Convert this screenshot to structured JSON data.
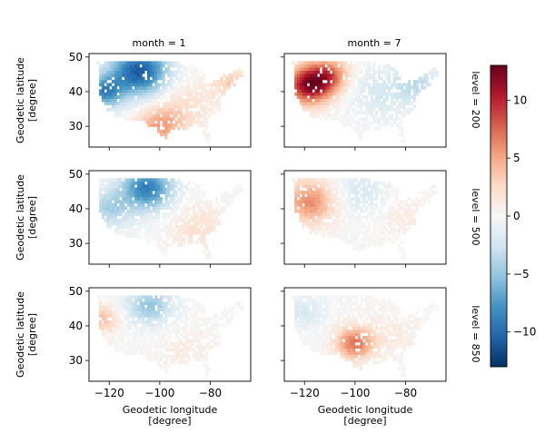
{
  "chart_data": {
    "type": "heatmap",
    "facet_columns": {
      "variable": "month",
      "values": [
        1,
        7
      ],
      "titles": [
        "month = 1",
        "month = 7"
      ]
    },
    "facet_rows": {
      "variable": "level",
      "values": [
        200,
        500,
        850
      ],
      "titles": [
        "level = 200",
        "level = 500",
        "level = 850"
      ]
    },
    "xlabel": "Geodetic longitude\n[degree]",
    "ylabel": "Geodetic latitude\n[degree]",
    "xlim": [
      -128,
      -64
    ],
    "ylim": [
      24,
      51
    ],
    "xticks": [
      -120,
      -100,
      -80
    ],
    "xtick_labels": [
      "−120",
      "−100",
      "−80"
    ],
    "yticks": [
      30,
      40,
      50
    ],
    "ytick_labels": [
      "30",
      "40",
      "50"
    ],
    "colorbar": {
      "min": -13,
      "max": 13,
      "ticks": [
        -10,
        -5,
        0,
        5,
        10
      ],
      "tick_labels": [
        "−10",
        "−5",
        "0",
        "5",
        "10"
      ],
      "colormap": "RdBu_r",
      "colors": [
        "#053061",
        "#2166ac",
        "#4393c3",
        "#92c5de",
        "#d1e5f0",
        "#f7f7f7",
        "#fddbc7",
        "#f4a582",
        "#d6604d",
        "#b2182b",
        "#67001f"
      ]
    },
    "panels": [
      {
        "row": 0,
        "col": 0,
        "month": 1,
        "level": 200,
        "description": "cold (-10) over northwest/north-central US, warm (+6) over south/southeast",
        "anomaly_centers": [
          {
            "lon": -108,
            "lat": 46,
            "value": -11,
            "spread": 9
          },
          {
            "lon": -122,
            "lat": 40,
            "value": -8,
            "spread": 6
          },
          {
            "lon": -90,
            "lat": 36,
            "value": 2,
            "spread": 10
          },
          {
            "lon": -100,
            "lat": 30,
            "value": 5,
            "spread": 7
          },
          {
            "lon": -72,
            "lat": 43,
            "value": 3,
            "spread": 6
          }
        ]
      },
      {
        "row": 0,
        "col": 1,
        "month": 7,
        "level": 200,
        "description": "strong warm (+11) over west, weak cool over east",
        "anomaly_centers": [
          {
            "lon": -118,
            "lat": 42,
            "value": 12,
            "spread": 7
          },
          {
            "lon": -110,
            "lat": 45,
            "value": 6,
            "spread": 6
          },
          {
            "lon": -90,
            "lat": 40,
            "value": -2,
            "spread": 10
          },
          {
            "lon": -75,
            "lat": 42,
            "value": -3,
            "spread": 7
          }
        ]
      },
      {
        "row": 1,
        "col": 0,
        "month": 1,
        "level": 500,
        "description": "cold (-8) over north-central, weak warm over southeast",
        "anomaly_centers": [
          {
            "lon": -105,
            "lat": 46,
            "value": -9,
            "spread": 8
          },
          {
            "lon": -120,
            "lat": 40,
            "value": -4,
            "spread": 7
          },
          {
            "lon": -85,
            "lat": 34,
            "value": 2,
            "spread": 9
          }
        ]
      },
      {
        "row": 1,
        "col": 1,
        "month": 7,
        "level": 500,
        "description": "warm (+5) over west, slight cool over north-central",
        "anomaly_centers": [
          {
            "lon": -118,
            "lat": 42,
            "value": 6,
            "spread": 8
          },
          {
            "lon": -98,
            "lat": 45,
            "value": -2,
            "spread": 8
          },
          {
            "lon": -80,
            "lat": 38,
            "value": 1,
            "spread": 8
          }
        ]
      },
      {
        "row": 2,
        "col": 0,
        "month": 1,
        "level": 850,
        "description": "weak warm over west coast, cool over northern plains",
        "anomaly_centers": [
          {
            "lon": -123,
            "lat": 42,
            "value": 4,
            "spread": 5
          },
          {
            "lon": -104,
            "lat": 46,
            "value": -5,
            "spread": 7
          },
          {
            "lon": -90,
            "lat": 33,
            "value": 1,
            "spread": 8
          }
        ]
      },
      {
        "row": 2,
        "col": 1,
        "month": 7,
        "level": 850,
        "description": "warm (+6) over southern plains/Texas, weak cool over northwest",
        "anomaly_centers": [
          {
            "lon": -100,
            "lat": 35,
            "value": 7,
            "spread": 6
          },
          {
            "lon": -120,
            "lat": 44,
            "value": -2,
            "spread": 6
          },
          {
            "lon": -85,
            "lat": 38,
            "value": 1,
            "spread": 8
          }
        ]
      }
    ]
  }
}
